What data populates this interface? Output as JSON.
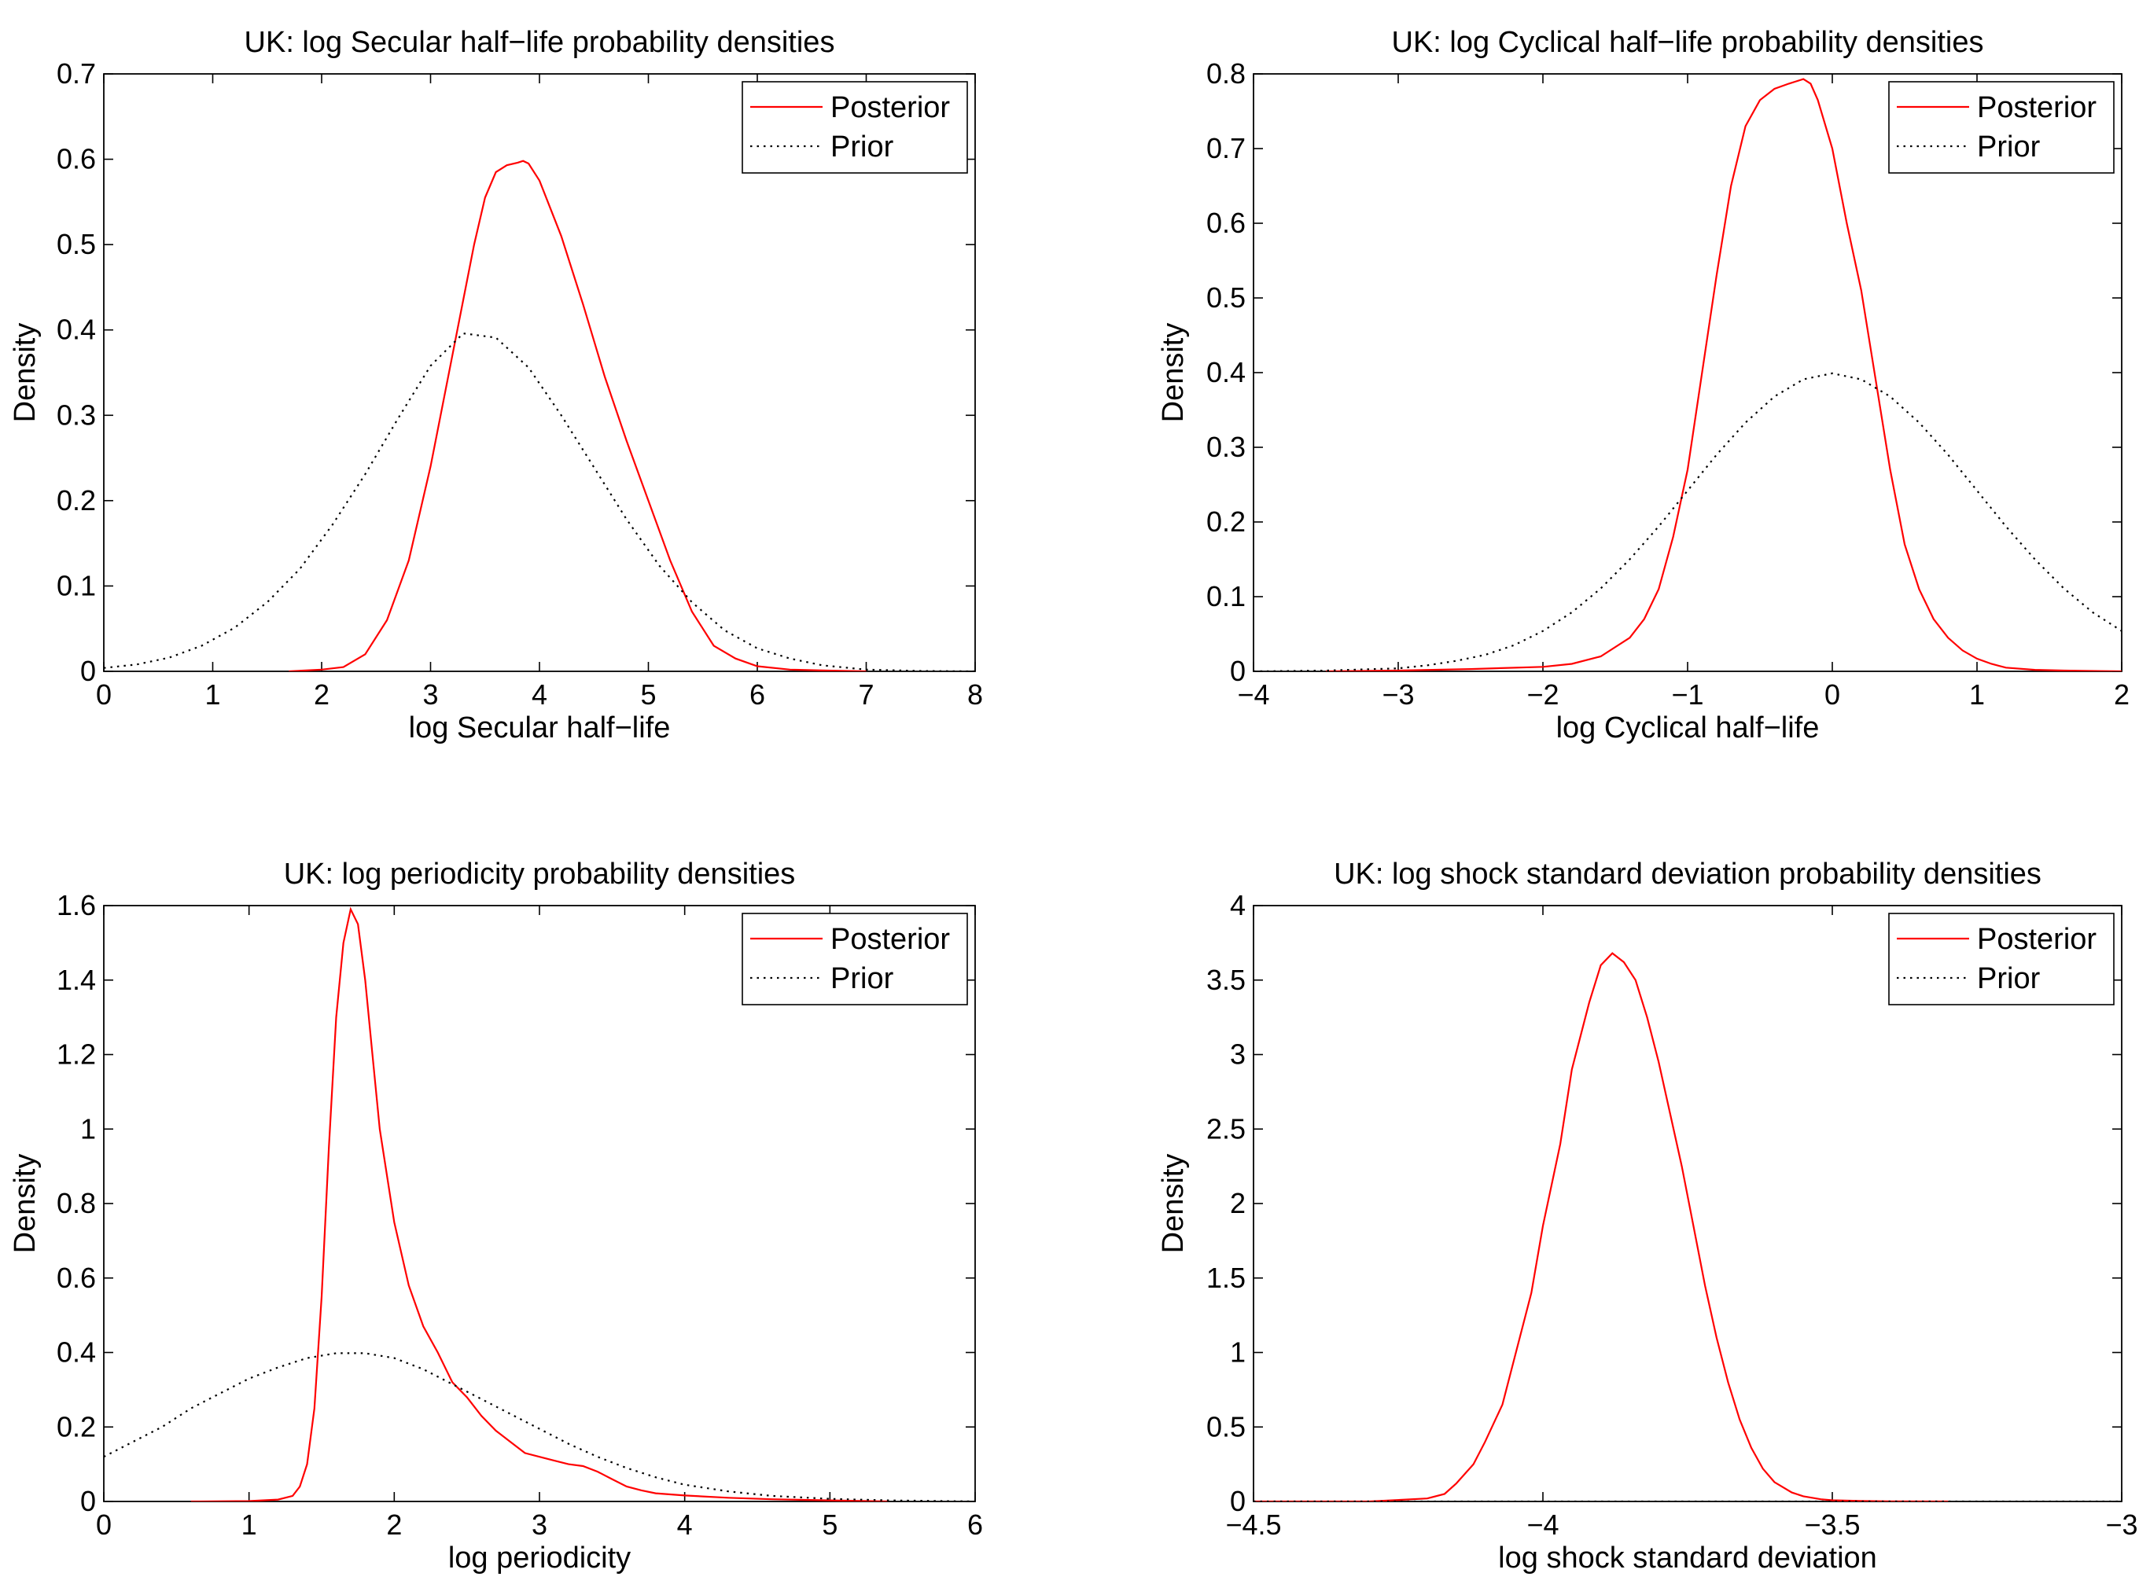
{
  "figure": {
    "ylabel": "Density",
    "legend_entries": [
      "Posterior",
      "Prior"
    ]
  },
  "colors": {
    "posterior": "#ff0000",
    "prior": "#000000"
  },
  "chart_data": [
    {
      "type": "line",
      "title": "UK:  log Secular half−life probability densities",
      "xlabel": "log Secular half−life",
      "ylabel": "Density",
      "xlim": [
        0,
        8
      ],
      "ylim": [
        0,
        0.7
      ],
      "xticks": [
        0,
        1,
        2,
        3,
        4,
        5,
        6,
        7,
        8
      ],
      "yticks": [
        0,
        0.1,
        0.2,
        0.3,
        0.4,
        0.5,
        0.6,
        0.7
      ],
      "xtick_labels": [
        "0",
        "1",
        "2",
        "3",
        "4",
        "5",
        "6",
        "7",
        "8"
      ],
      "ytick_labels": [
        "0",
        "0.1",
        "0.2",
        "0.3",
        "0.4",
        "0.5",
        "0.6",
        "0.7"
      ],
      "legend": {
        "position": "top-right",
        "entries": [
          "Posterior",
          "Prior"
        ]
      },
      "series": [
        {
          "name": "Posterior",
          "style": "solid",
          "color": "#ff0000",
          "x": [
            1.7,
            2.0,
            2.2,
            2.4,
            2.6,
            2.8,
            3.0,
            3.2,
            3.4,
            3.5,
            3.6,
            3.7,
            3.8,
            3.85,
            3.9,
            4.0,
            4.2,
            4.4,
            4.6,
            4.8,
            5.0,
            5.2,
            5.4,
            5.6,
            5.8,
            6.0,
            6.3,
            6.6,
            7.0
          ],
          "y": [
            0.0,
            0.002,
            0.005,
            0.02,
            0.06,
            0.13,
            0.24,
            0.37,
            0.5,
            0.555,
            0.585,
            0.593,
            0.596,
            0.598,
            0.595,
            0.575,
            0.51,
            0.43,
            0.345,
            0.27,
            0.2,
            0.13,
            0.07,
            0.03,
            0.015,
            0.006,
            0.002,
            0.001,
            0.0
          ]
        },
        {
          "name": "Prior",
          "style": "dotted",
          "color": "#000000",
          "x": [
            0.0,
            0.3,
            0.6,
            0.9,
            1.2,
            1.5,
            1.8,
            2.1,
            2.4,
            2.7,
            3.0,
            3.3,
            3.6,
            3.9,
            4.2,
            4.5,
            4.8,
            5.1,
            5.4,
            5.7,
            6.0,
            6.3,
            6.6,
            7.0,
            7.5,
            8.0
          ],
          "y": [
            0.004,
            0.008,
            0.016,
            0.03,
            0.051,
            0.081,
            0.12,
            0.172,
            0.231,
            0.296,
            0.358,
            0.396,
            0.391,
            0.356,
            0.3,
            0.239,
            0.178,
            0.124,
            0.081,
            0.048,
            0.027,
            0.015,
            0.007,
            0.002,
            0.0005,
            0.0
          ]
        }
      ]
    },
    {
      "type": "line",
      "title": "UK:  log Cyclical half−life probability densities",
      "xlabel": "log Cyclical half−life",
      "ylabel": "Density",
      "xlim": [
        -4,
        2
      ],
      "ylim": [
        0,
        0.8
      ],
      "xticks": [
        -4,
        -3,
        -2,
        -1,
        0,
        1,
        2
      ],
      "yticks": [
        0,
        0.1,
        0.2,
        0.3,
        0.4,
        0.5,
        0.6,
        0.7,
        0.8
      ],
      "xtick_labels": [
        "−4",
        "−3",
        "−2",
        "−1",
        "0",
        "1",
        "2"
      ],
      "ytick_labels": [
        "0",
        "0.1",
        "0.2",
        "0.3",
        "0.4",
        "0.5",
        "0.6",
        "0.7",
        "0.8"
      ],
      "legend": {
        "position": "top-right",
        "entries": [
          "Posterior",
          "Prior"
        ]
      },
      "series": [
        {
          "name": "Posterior",
          "style": "solid",
          "color": "#ff0000",
          "x": [
            -3.5,
            -3.0,
            -2.5,
            -2.0,
            -1.8,
            -1.6,
            -1.4,
            -1.3,
            -1.2,
            -1.1,
            -1.0,
            -0.9,
            -0.8,
            -0.7,
            -0.6,
            -0.5,
            -0.4,
            -0.3,
            -0.25,
            -0.2,
            -0.15,
            -0.1,
            0.0,
            0.1,
            0.2,
            0.3,
            0.4,
            0.5,
            0.6,
            0.7,
            0.8,
            0.9,
            1.0,
            1.1,
            1.2,
            1.4,
            1.6,
            2.0
          ],
          "y": [
            0.0,
            0.001,
            0.003,
            0.006,
            0.01,
            0.02,
            0.045,
            0.07,
            0.11,
            0.18,
            0.27,
            0.4,
            0.53,
            0.65,
            0.73,
            0.765,
            0.78,
            0.787,
            0.79,
            0.793,
            0.787,
            0.765,
            0.7,
            0.6,
            0.51,
            0.39,
            0.27,
            0.17,
            0.11,
            0.07,
            0.045,
            0.028,
            0.017,
            0.01,
            0.005,
            0.002,
            0.001,
            0.0
          ]
        },
        {
          "name": "Prior",
          "style": "dotted",
          "color": "#000000",
          "x": [
            -4.0,
            -3.5,
            -3.0,
            -2.8,
            -2.6,
            -2.4,
            -2.2,
            -2.0,
            -1.8,
            -1.6,
            -1.4,
            -1.2,
            -1.0,
            -0.8,
            -0.6,
            -0.4,
            -0.2,
            0.0,
            0.2,
            0.4,
            0.6,
            0.8,
            1.0,
            1.2,
            1.4,
            1.6,
            1.8,
            2.0
          ],
          "y": [
            0.0,
            0.001,
            0.004,
            0.008,
            0.014,
            0.022,
            0.035,
            0.054,
            0.079,
            0.111,
            0.15,
            0.194,
            0.242,
            0.29,
            0.333,
            0.368,
            0.391,
            0.399,
            0.391,
            0.368,
            0.333,
            0.29,
            0.242,
            0.194,
            0.15,
            0.111,
            0.079,
            0.054
          ]
        }
      ]
    },
    {
      "type": "line",
      "title": "UK:  log periodicity probability densities",
      "xlabel": "log periodicity",
      "ylabel": "Density",
      "xlim": [
        0,
        6
      ],
      "ylim": [
        0,
        1.6
      ],
      "xticks": [
        0,
        1,
        2,
        3,
        4,
        5,
        6
      ],
      "yticks": [
        0,
        0.2,
        0.4,
        0.6,
        0.8,
        1.0,
        1.2,
        1.4,
        1.6
      ],
      "xtick_labels": [
        "0",
        "1",
        "2",
        "3",
        "4",
        "5",
        "6"
      ],
      "ytick_labels": [
        "0",
        "0.2",
        "0.4",
        "0.6",
        "0.8",
        "1",
        "1.2",
        "1.4",
        "1.6"
      ],
      "legend": {
        "position": "top-right",
        "entries": [
          "Posterior",
          "Prior"
        ]
      },
      "series": [
        {
          "name": "Posterior",
          "style": "solid",
          "color": "#ff0000",
          "x": [
            0.6,
            1.0,
            1.2,
            1.3,
            1.35,
            1.4,
            1.45,
            1.5,
            1.55,
            1.6,
            1.65,
            1.7,
            1.75,
            1.8,
            1.85,
            1.9,
            2.0,
            2.1,
            2.2,
            2.3,
            2.4,
            2.5,
            2.6,
            2.7,
            2.8,
            2.9,
            3.0,
            3.1,
            3.2,
            3.3,
            3.4,
            3.5,
            3.6,
            3.7,
            3.8,
            4.0,
            4.3,
            4.6,
            5.0,
            5.4
          ],
          "y": [
            0.0,
            0.001,
            0.005,
            0.015,
            0.04,
            0.1,
            0.25,
            0.55,
            0.95,
            1.3,
            1.5,
            1.59,
            1.55,
            1.4,
            1.2,
            1.0,
            0.75,
            0.58,
            0.47,
            0.4,
            0.32,
            0.28,
            0.23,
            0.19,
            0.16,
            0.13,
            0.12,
            0.11,
            0.1,
            0.095,
            0.08,
            0.06,
            0.04,
            0.03,
            0.022,
            0.016,
            0.01,
            0.006,
            0.003,
            0.0
          ]
        },
        {
          "name": "Prior",
          "style": "dotted",
          "color": "#000000",
          "x": [
            0.0,
            0.2,
            0.4,
            0.6,
            0.8,
            1.0,
            1.2,
            1.4,
            1.6,
            1.8,
            2.0,
            2.2,
            2.4,
            2.6,
            2.8,
            3.0,
            3.2,
            3.4,
            3.6,
            3.8,
            4.0,
            4.3,
            4.6,
            5.0,
            5.4,
            5.8,
            6.0
          ],
          "y": [
            0.12,
            0.16,
            0.2,
            0.25,
            0.29,
            0.33,
            0.36,
            0.385,
            0.398,
            0.398,
            0.385,
            0.355,
            0.315,
            0.275,
            0.235,
            0.195,
            0.155,
            0.12,
            0.09,
            0.065,
            0.045,
            0.027,
            0.015,
            0.007,
            0.003,
            0.001,
            0.0
          ]
        }
      ]
    },
    {
      "type": "line",
      "title": "UK:  log shock standard deviation probability densities",
      "xlabel": "log shock standard deviation",
      "ylabel": "Density",
      "xlim": [
        -4.5,
        -3
      ],
      "ylim": [
        0,
        4
      ],
      "xticks": [
        -4.5,
        -4,
        -3.5,
        -3
      ],
      "yticks": [
        0,
        0.5,
        1,
        1.5,
        2,
        2.5,
        3,
        3.5,
        4
      ],
      "xtick_labels": [
        "−4.5",
        "−4",
        "−3.5",
        "−3"
      ],
      "ytick_labels": [
        "0",
        "0.5",
        "1",
        "1.5",
        "2",
        "2.5",
        "3",
        "3.5",
        "4"
      ],
      "legend": {
        "position": "top-right",
        "entries": [
          "Posterior",
          "Prior"
        ]
      },
      "series": [
        {
          "name": "Posterior",
          "style": "solid",
          "color": "#ff0000",
          "x": [
            -4.5,
            -4.3,
            -4.2,
            -4.17,
            -4.15,
            -4.12,
            -4.1,
            -4.07,
            -4.05,
            -4.02,
            -4.0,
            -3.97,
            -3.95,
            -3.92,
            -3.9,
            -3.88,
            -3.86,
            -3.84,
            -3.82,
            -3.8,
            -3.78,
            -3.76,
            -3.74,
            -3.72,
            -3.7,
            -3.68,
            -3.66,
            -3.64,
            -3.62,
            -3.6,
            -3.57,
            -3.55,
            -3.52,
            -3.5,
            -3.45,
            -3.4,
            -3.3
          ],
          "y": [
            0.0,
            0.0,
            0.02,
            0.05,
            0.12,
            0.25,
            0.4,
            0.65,
            0.95,
            1.4,
            1.85,
            2.4,
            2.9,
            3.35,
            3.6,
            3.68,
            3.62,
            3.5,
            3.25,
            2.95,
            2.6,
            2.25,
            1.85,
            1.45,
            1.1,
            0.8,
            0.55,
            0.36,
            0.22,
            0.13,
            0.06,
            0.035,
            0.015,
            0.008,
            0.003,
            0.001,
            0.0
          ]
        },
        {
          "name": "Prior",
          "style": "dotted",
          "color": "#000000",
          "x": [
            -4.5,
            -3.0
          ],
          "y": [
            0.0,
            0.0
          ]
        }
      ]
    }
  ]
}
